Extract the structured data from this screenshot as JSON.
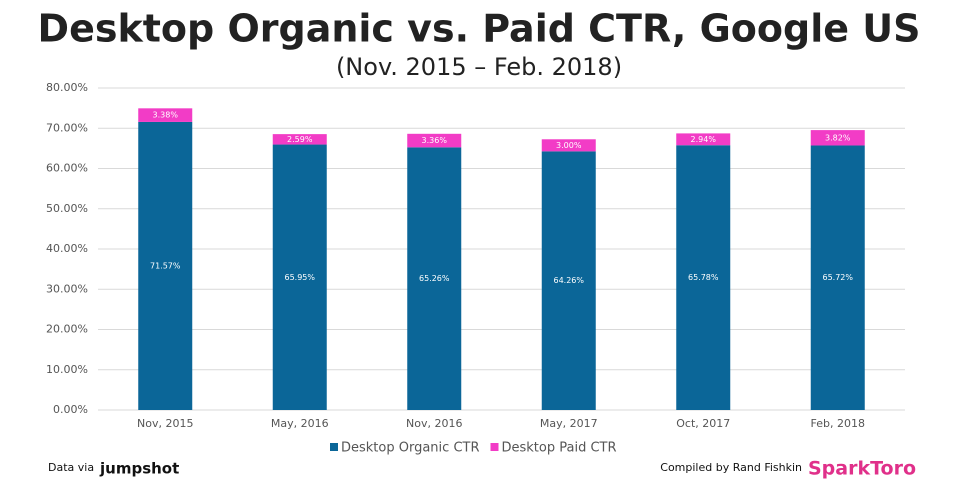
{
  "chart_data": {
    "type": "stacked-bar",
    "title": "Desktop Organic vs. Paid CTR, Google US",
    "subtitle": "(Nov. 2015 – Feb. 2018)",
    "categories": [
      "Nov, 2015",
      "May, 2016",
      "Nov, 2016",
      "May, 2017",
      "Oct, 2017",
      "Feb, 2018"
    ],
    "series": [
      {
        "name": "Desktop Organic CTR",
        "color": "#0b6698",
        "values": [
          71.57,
          65.95,
          65.26,
          64.26,
          65.78,
          65.72
        ],
        "value_labels": [
          "71.57%",
          "65.95%",
          "65.26%",
          "64.26%",
          "65.78%",
          "65.72%"
        ]
      },
      {
        "name": "Desktop Paid CTR",
        "color": "#f23cc6",
        "values": [
          3.38,
          2.59,
          3.36,
          3.0,
          2.94,
          3.82
        ],
        "value_labels": [
          "3.38%",
          "2.59%",
          "3.36%",
          "3.00%",
          "2.94%",
          "3.82%"
        ]
      }
    ],
    "ylim": [
      0,
      80
    ],
    "yticks": [
      {
        "value": 0,
        "label": "0.00%"
      },
      {
        "value": 10,
        "label": "10.00%"
      },
      {
        "value": 20,
        "label": "20.00%"
      },
      {
        "value": 30,
        "label": "30.00%"
      },
      {
        "value": 40,
        "label": "40.00%"
      },
      {
        "value": 50,
        "label": "50.00%"
      },
      {
        "value": 60,
        "label": "60.00%"
      },
      {
        "value": 70,
        "label": "70.00%"
      },
      {
        "value": 80,
        "label": "80.00%"
      }
    ],
    "grid": true,
    "legend": "bottom"
  },
  "footer": {
    "source_prefix": "Data via",
    "source": "jumpshot",
    "credit": "Compiled by Rand Fishkin",
    "brand": "SparkToro"
  }
}
